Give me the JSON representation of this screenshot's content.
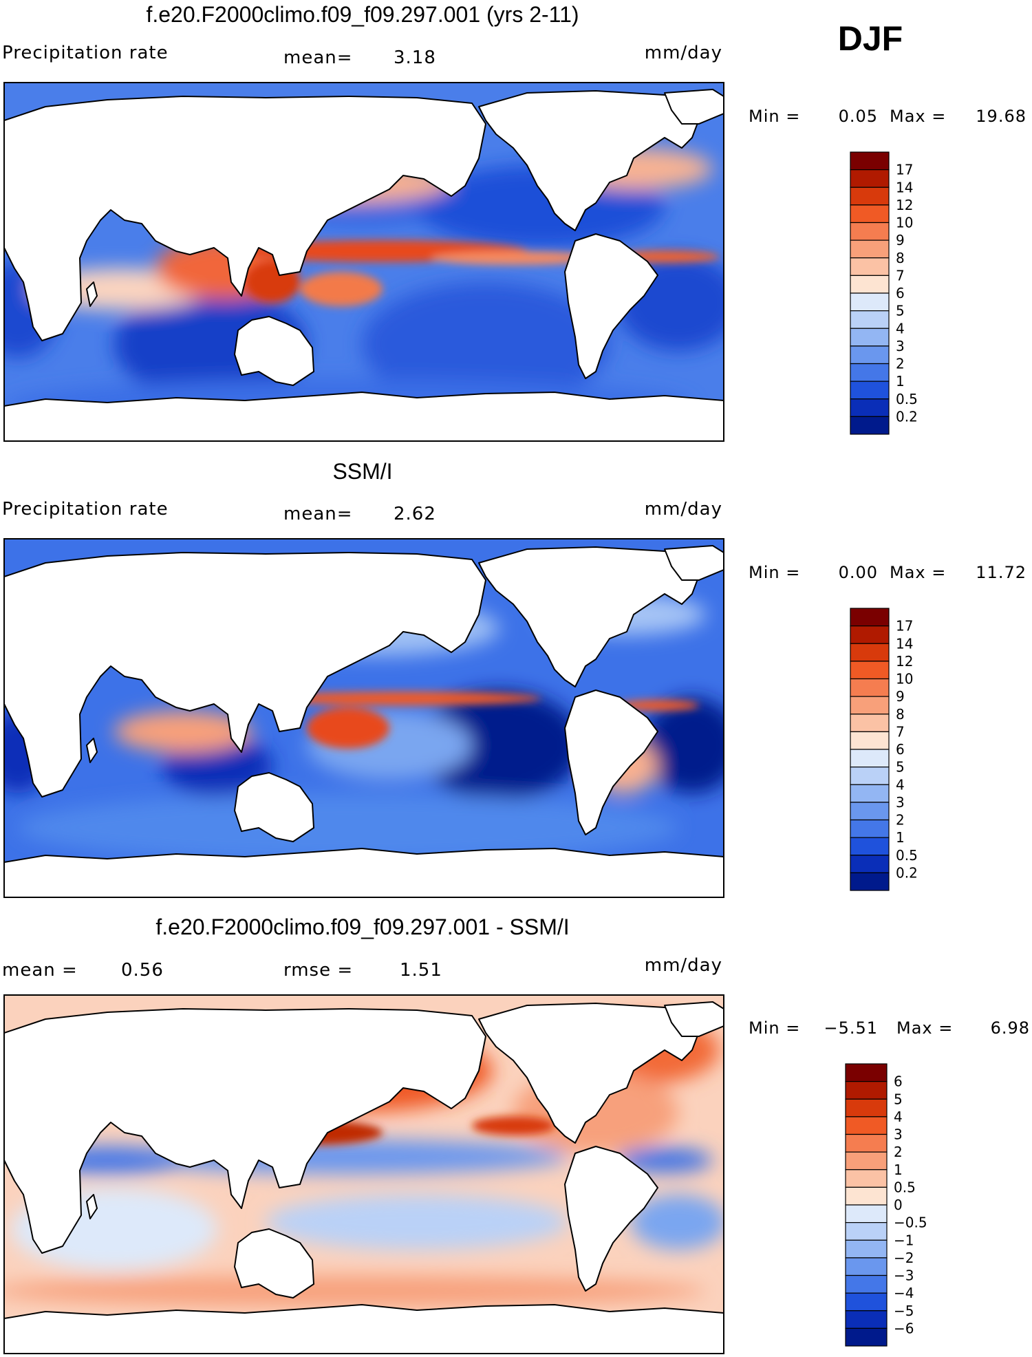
{
  "season": "DJF",
  "panels": [
    {
      "title": "f.e20.F2000climo.f09_f09.297.001 (yrs 2-11)",
      "left_label": "Precipitation rate",
      "mid_label": "mean=",
      "mid_value": "3.18",
      "extra_label": "",
      "extra_value": "",
      "units": "mm/day",
      "min_label": "Min =",
      "min_value": "0.05",
      "max_label": "Max =",
      "max_value": "19.68",
      "colorbar_levels": [
        "17",
        "14",
        "12",
        "10",
        "9",
        "8",
        "7",
        "6",
        "5",
        "4",
        "3",
        "2",
        "1",
        "0.5",
        "0.2"
      ],
      "colorbar_colors": [
        "#7a0000",
        "#b01a00",
        "#d83a0c",
        "#f05a25",
        "#f57d50",
        "#f8a07a",
        "#fbc2a5",
        "#fde4d2",
        "#dde9fa",
        "#bad1f7",
        "#93b6f3",
        "#6a97ee",
        "#4477e8",
        "#1f52dc",
        "#0a2eb8",
        "#001a8c"
      ]
    },
    {
      "title": "SSM/I",
      "left_label": "Precipitation rate",
      "mid_label": "mean=",
      "mid_value": "2.62",
      "extra_label": "",
      "extra_value": "",
      "units": "mm/day",
      "min_label": "Min =",
      "min_value": "0.00",
      "max_label": "Max =",
      "max_value": "11.72",
      "colorbar_levels": [
        "17",
        "14",
        "12",
        "10",
        "9",
        "8",
        "7",
        "6",
        "5",
        "4",
        "3",
        "2",
        "1",
        "0.5",
        "0.2"
      ],
      "colorbar_colors": [
        "#7a0000",
        "#b01a00",
        "#d83a0c",
        "#f05a25",
        "#f57d50",
        "#f8a07a",
        "#fbc2a5",
        "#fde4d2",
        "#dde9fa",
        "#bad1f7",
        "#93b6f3",
        "#6a97ee",
        "#4477e8",
        "#1f52dc",
        "#0a2eb8",
        "#001a8c"
      ]
    },
    {
      "title": "f.e20.F2000climo.f09_f09.297.001 - SSM/I",
      "left_label": "mean =",
      "mid_label": "",
      "mid_value": "0.56",
      "extra_label": "rmse =",
      "extra_value": "1.51",
      "units": "mm/day",
      "min_label": "Min =",
      "min_value": "−5.51",
      "max_label": "Max =",
      "max_value": "6.98",
      "colorbar_levels": [
        "6",
        "5",
        "4",
        "3",
        "2",
        "1",
        "0.5",
        "0",
        "−0.5",
        "−1",
        "−2",
        "−3",
        "−4",
        "−5",
        "−6"
      ],
      "colorbar_colors": [
        "#7a0000",
        "#b01a00",
        "#d83a0c",
        "#f05a25",
        "#f57d50",
        "#f8a07a",
        "#fbc2a5",
        "#fde4d2",
        "#dde9fa",
        "#bad1f7",
        "#93b6f3",
        "#6a97ee",
        "#4477e8",
        "#1f52dc",
        "#0a2eb8",
        "#001a8c"
      ]
    }
  ]
}
